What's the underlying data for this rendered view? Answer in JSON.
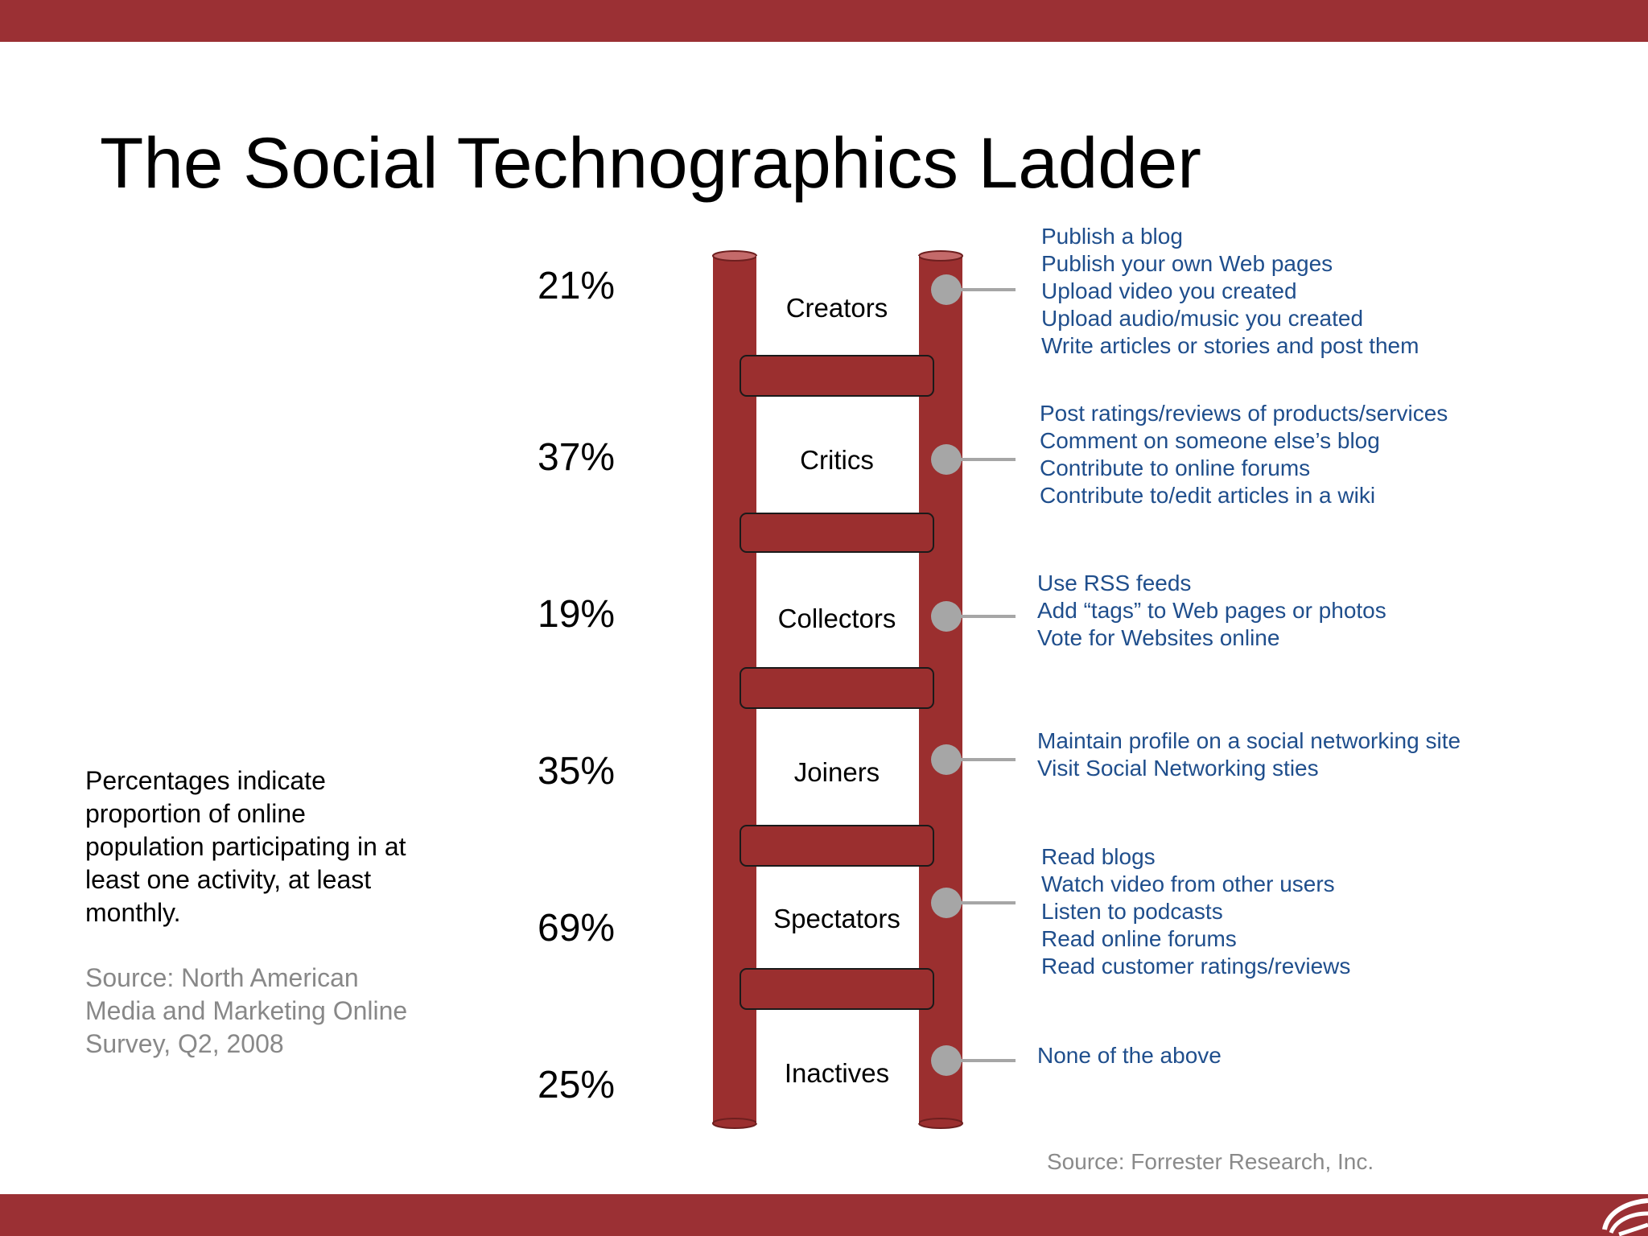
{
  "title": "The Social Technographics Ladder",
  "note": "Percentages indicate proportion of online population participating in at least one activity, at least monthly.",
  "source_left": "Source:  North American Media and Marketing Online Survey, Q2, 2008",
  "source_right": "Source:  Forrester Research, Inc.",
  "colors": {
    "brand_red": "#9b3034",
    "rail_red": "#9b2f2f",
    "activity_blue": "#1f4e8c",
    "connector_gray": "#a6a6a6",
    "source_gray": "#888888"
  },
  "icons": {
    "corner_logo": "publisher-logo-icon",
    "connector_dot": "connector-dot-icon"
  },
  "rungs": [
    {
      "name": "Creators",
      "percent": "21%",
      "activities": [
        "Publish a blog",
        "Publish your own Web pages",
        "Upload video you created",
        "Upload audio/music you created",
        "Write articles or stories and post them"
      ]
    },
    {
      "name": "Critics",
      "percent": "37%",
      "activities": [
        "Post ratings/reviews of products/services",
        "Comment on someone else’s blog",
        "Contribute to online forums",
        "Contribute to/edit articles in a wiki"
      ]
    },
    {
      "name": "Collectors",
      "percent": "19%",
      "activities": [
        "Use RSS feeds",
        "Add “tags” to Web pages or photos",
        "Vote for Websites online"
      ]
    },
    {
      "name": "Joiners",
      "percent": "35%",
      "activities": [
        "Maintain profile on a social networking site",
        "Visit Social Networking sties"
      ]
    },
    {
      "name": "Spectators",
      "percent": "69%",
      "activities": [
        "Read blogs",
        "Watch video from other users",
        "Listen to podcasts",
        "Read online forums",
        "Read customer ratings/reviews"
      ]
    },
    {
      "name": "Inactives",
      "percent": "25%",
      "activities": [
        "None of the above"
      ]
    }
  ]
}
